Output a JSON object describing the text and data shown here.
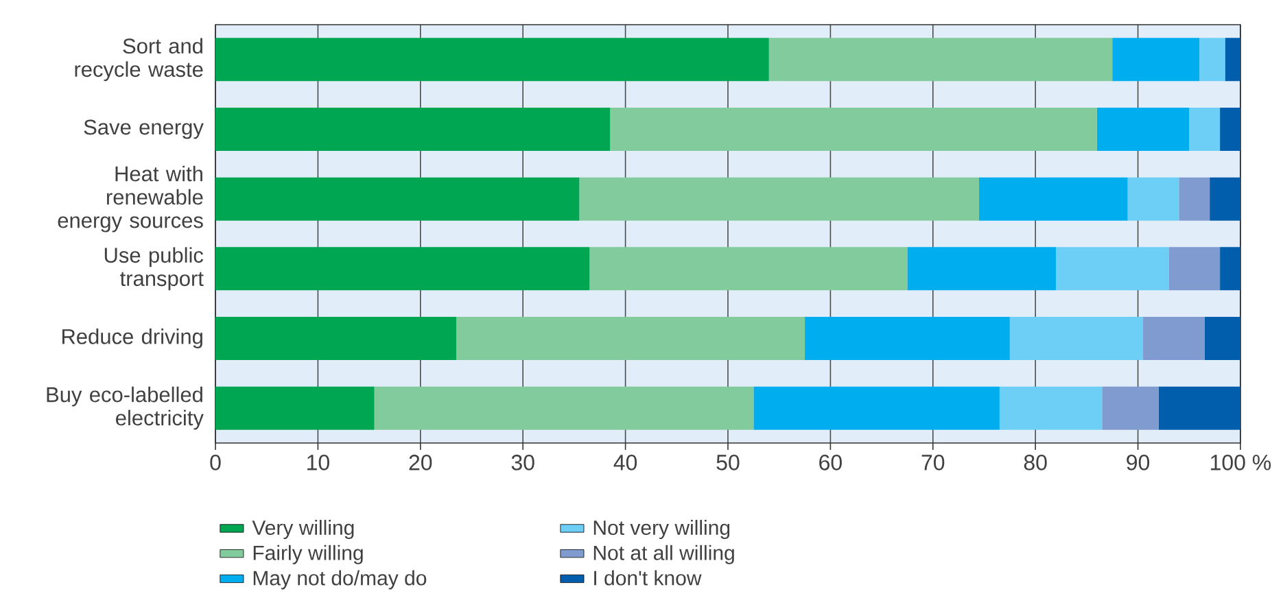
{
  "chart_data": {
    "type": "bar",
    "orientation": "horizontal",
    "stacked": true,
    "categories": [
      "Sort and recycle waste",
      "Save energy",
      "Heat with renewable energy sources",
      "Use public transport",
      "Reduce driving",
      "Buy eco-labelled electricity"
    ],
    "series": [
      {
        "name": "Very willing",
        "color": "#00a651",
        "values": [
          54,
          38.5,
          35.5,
          36.5,
          23.5,
          15.5
        ]
      },
      {
        "name": "Fairly willing",
        "color": "#82cb9c",
        "values": [
          33.5,
          47.5,
          39,
          31,
          34,
          37
        ]
      },
      {
        "name": "May not do/may do",
        "color": "#00aeef",
        "values": [
          8.5,
          9,
          14.5,
          14.5,
          20,
          24
        ]
      },
      {
        "name": "Not very willing",
        "color": "#6dcff6",
        "values": [
          2.5,
          3,
          5,
          11,
          13,
          10
        ]
      },
      {
        "name": "Not at all willing",
        "color": "#7f9bd0",
        "values": [
          0,
          0,
          3,
          5,
          6,
          5.5
        ]
      },
      {
        "name": "I don't know",
        "color": "#005eac",
        "values": [
          1.5,
          2,
          3,
          2,
          3.5,
          8
        ]
      }
    ],
    "xlim": [
      0,
      100
    ],
    "xticks": [
      0,
      10,
      20,
      30,
      40,
      50,
      60,
      70,
      80,
      90,
      {
        "value": 100,
        "label": "100 %"
      }
    ],
    "grid": "x",
    "legend": "bottom"
  }
}
